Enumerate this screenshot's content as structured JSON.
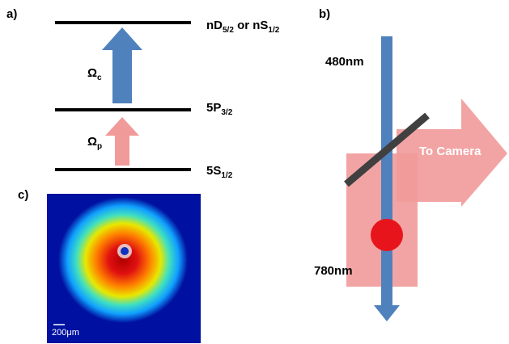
{
  "panels": {
    "a": "a)",
    "b": "b)",
    "c": "c)"
  },
  "level_diagram": {
    "levels": [
      {
        "parts": [
          {
            "text": "nD"
          },
          {
            "sub": "5/2"
          },
          {
            "text": " or nS"
          },
          {
            "sub": "1/2"
          }
        ]
      },
      {
        "parts": [
          {
            "text": "5P"
          },
          {
            "sub": "3/2"
          }
        ]
      },
      {
        "parts": [
          {
            "text": "5S"
          },
          {
            "sub": "1/2"
          }
        ]
      }
    ],
    "couplings": [
      {
        "symbol": "Ω",
        "sub": "c"
      },
      {
        "symbol": "Ω",
        "sub": "p"
      }
    ]
  },
  "setup": {
    "blue_beam": "480nm",
    "red_beam": "780nm",
    "output": "To Camera"
  },
  "image": {
    "scale_bar": "200μm"
  }
}
